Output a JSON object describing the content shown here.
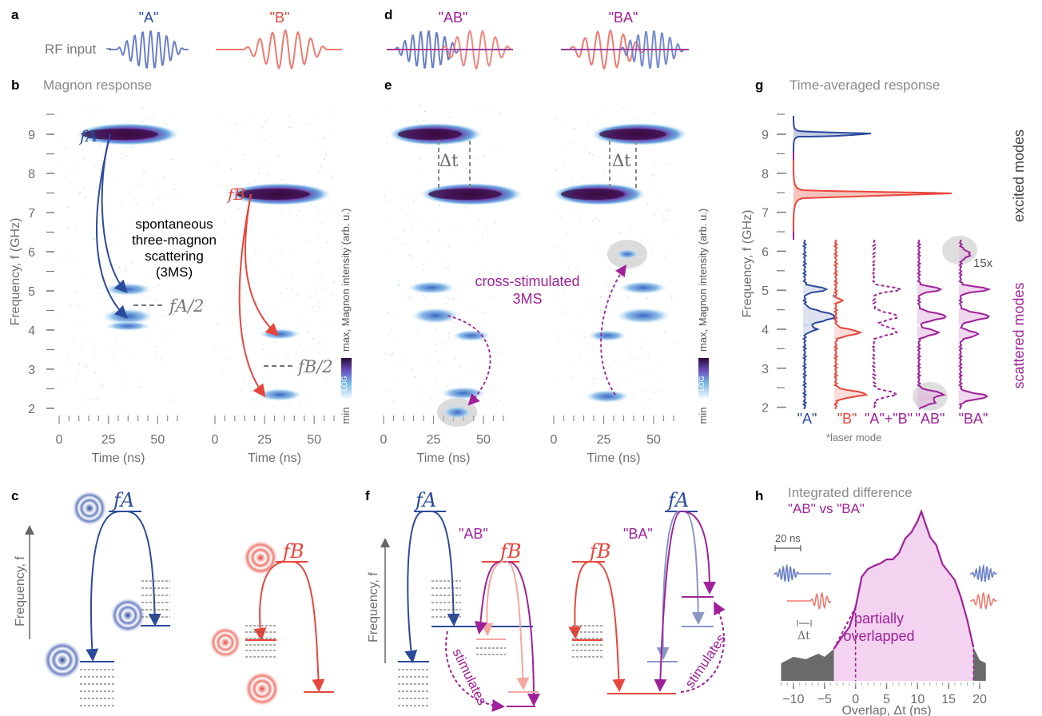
{
  "panels": {
    "a": "a",
    "b": "b",
    "c": "c",
    "d": "d",
    "e": "e",
    "f": "f",
    "g": "g",
    "h": "h"
  },
  "inputs": {
    "rf_label": "RF input",
    "A": "\"A\"",
    "B": "\"B\"",
    "AB": "\"AB\"",
    "BA": "\"BA\""
  },
  "magnon": {
    "title": "Magnon response",
    "yticks": [
      "2",
      "3",
      "4",
      "5",
      "6",
      "7",
      "8",
      "9"
    ],
    "ylabel": "Frequency, f (GHz)",
    "xticks": [
      "0",
      "25",
      "50"
    ],
    "xlabel": "Time (ns)",
    "fA": "fA",
    "fB": "fB",
    "halfA": "fA/2",
    "halfB": "fB/2",
    "scatter_text": [
      "spontaneous",
      "three-magnon",
      "scattering",
      "(3MS)"
    ],
    "cbar_max": "max, Magnon intensity (arb. u.)",
    "cbar_log": "LOG",
    "cbar_min": "min",
    "cross": [
      "cross-stimulated",
      "3MS"
    ],
    "dt": "Δt"
  },
  "avg": {
    "title": "Time-averaged response",
    "yticks": [
      "2",
      "3",
      "4",
      "5",
      "6",
      "7",
      "8",
      "9"
    ],
    "ylabel": "Frequency, f (GHz)",
    "excited": "excited modes",
    "scattered": "scattered modes",
    "scale": "15x",
    "cols": [
      "\"A\"",
      "\"B\"",
      "\"A\"+\"B\"",
      "\"AB\"",
      "\"BA\""
    ],
    "laser": "*laser mode",
    "star": "*"
  },
  "diff": {
    "title": "Integrated difference",
    "subtitle": "\"AB\" vs \"BA\"",
    "xticks": [
      "−10",
      "−5",
      "0",
      "5",
      "10",
      "15",
      "20"
    ],
    "xlabel": "Overlap, Δt (ns)",
    "scale": "20 ns",
    "region": [
      "partially",
      "overlapped"
    ],
    "dt": "Δt"
  },
  "levels": {
    "ylabel": "Frequency, f",
    "fA": "fA",
    "fB": "fB",
    "AB": "\"AB\"",
    "BA": "\"BA\"",
    "stimulates": "stimulates"
  },
  "colors": {
    "blue": "#2b4a9c",
    "red": "#e8463c",
    "purple": "#a0219a",
    "lightblue": "#8896c8",
    "lightred": "#f4a7a0"
  }
}
